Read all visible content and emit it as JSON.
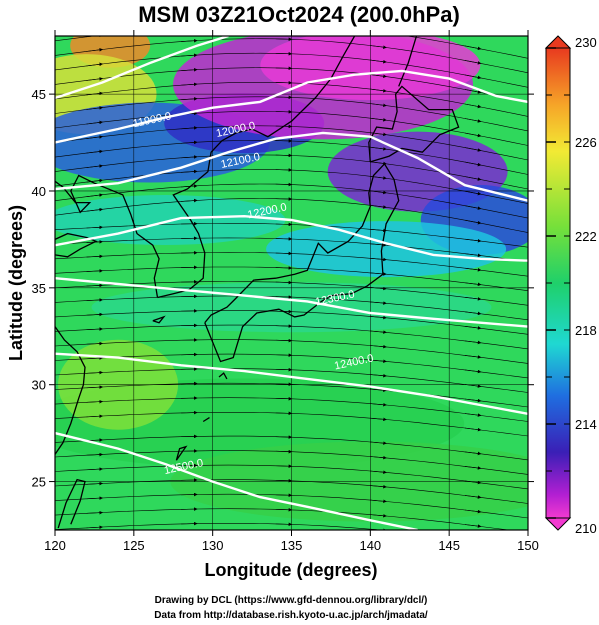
{
  "title": "MSM 03Z21Oct2024 (200.0hPa)",
  "map": {
    "lon_range": [
      120,
      150
    ],
    "lat_range": [
      22.5,
      48
    ],
    "lon_ticks": [
      "120",
      "125",
      "130",
      "135",
      "140",
      "145",
      "150"
    ],
    "lat_ticks": [
      "25",
      "30",
      "35",
      "40",
      "45"
    ],
    "xlabel": "Longitude (degrees)",
    "ylabel": "Latitude  (degrees)",
    "contours": [
      {
        "label": "11900.0",
        "lon": 126.2,
        "lat": 43.5
      },
      {
        "label": "12000.0",
        "lon": 131.5,
        "lat": 43.0
      },
      {
        "label": "12100.0",
        "lon": 131.8,
        "lat": 41.4
      },
      {
        "label": "12200.0",
        "lon": 133.5,
        "lat": 38.8
      },
      {
        "label": "12300.0",
        "lon": 137.8,
        "lat": 34.3
      },
      {
        "label": "12400.0",
        "lon": 139.0,
        "lat": 31.0
      },
      {
        "label": "12500.0",
        "lon": 128.2,
        "lat": 25.6
      }
    ]
  },
  "colorbar": {
    "min": 210,
    "max": 230,
    "tick_labels": [
      "230",
      "226",
      "222",
      "218",
      "214",
      "210"
    ]
  },
  "credits": {
    "line1": "Drawing by DCL (https://www.gfd-dennou.org/library/dcl/)",
    "line2": "Data from http://database.rish.kyoto-u.ac.jp/arch/jmadata/"
  },
  "colors": {
    "contour": "#ffffff",
    "streamline": "#000000",
    "coast": "#000000"
  }
}
